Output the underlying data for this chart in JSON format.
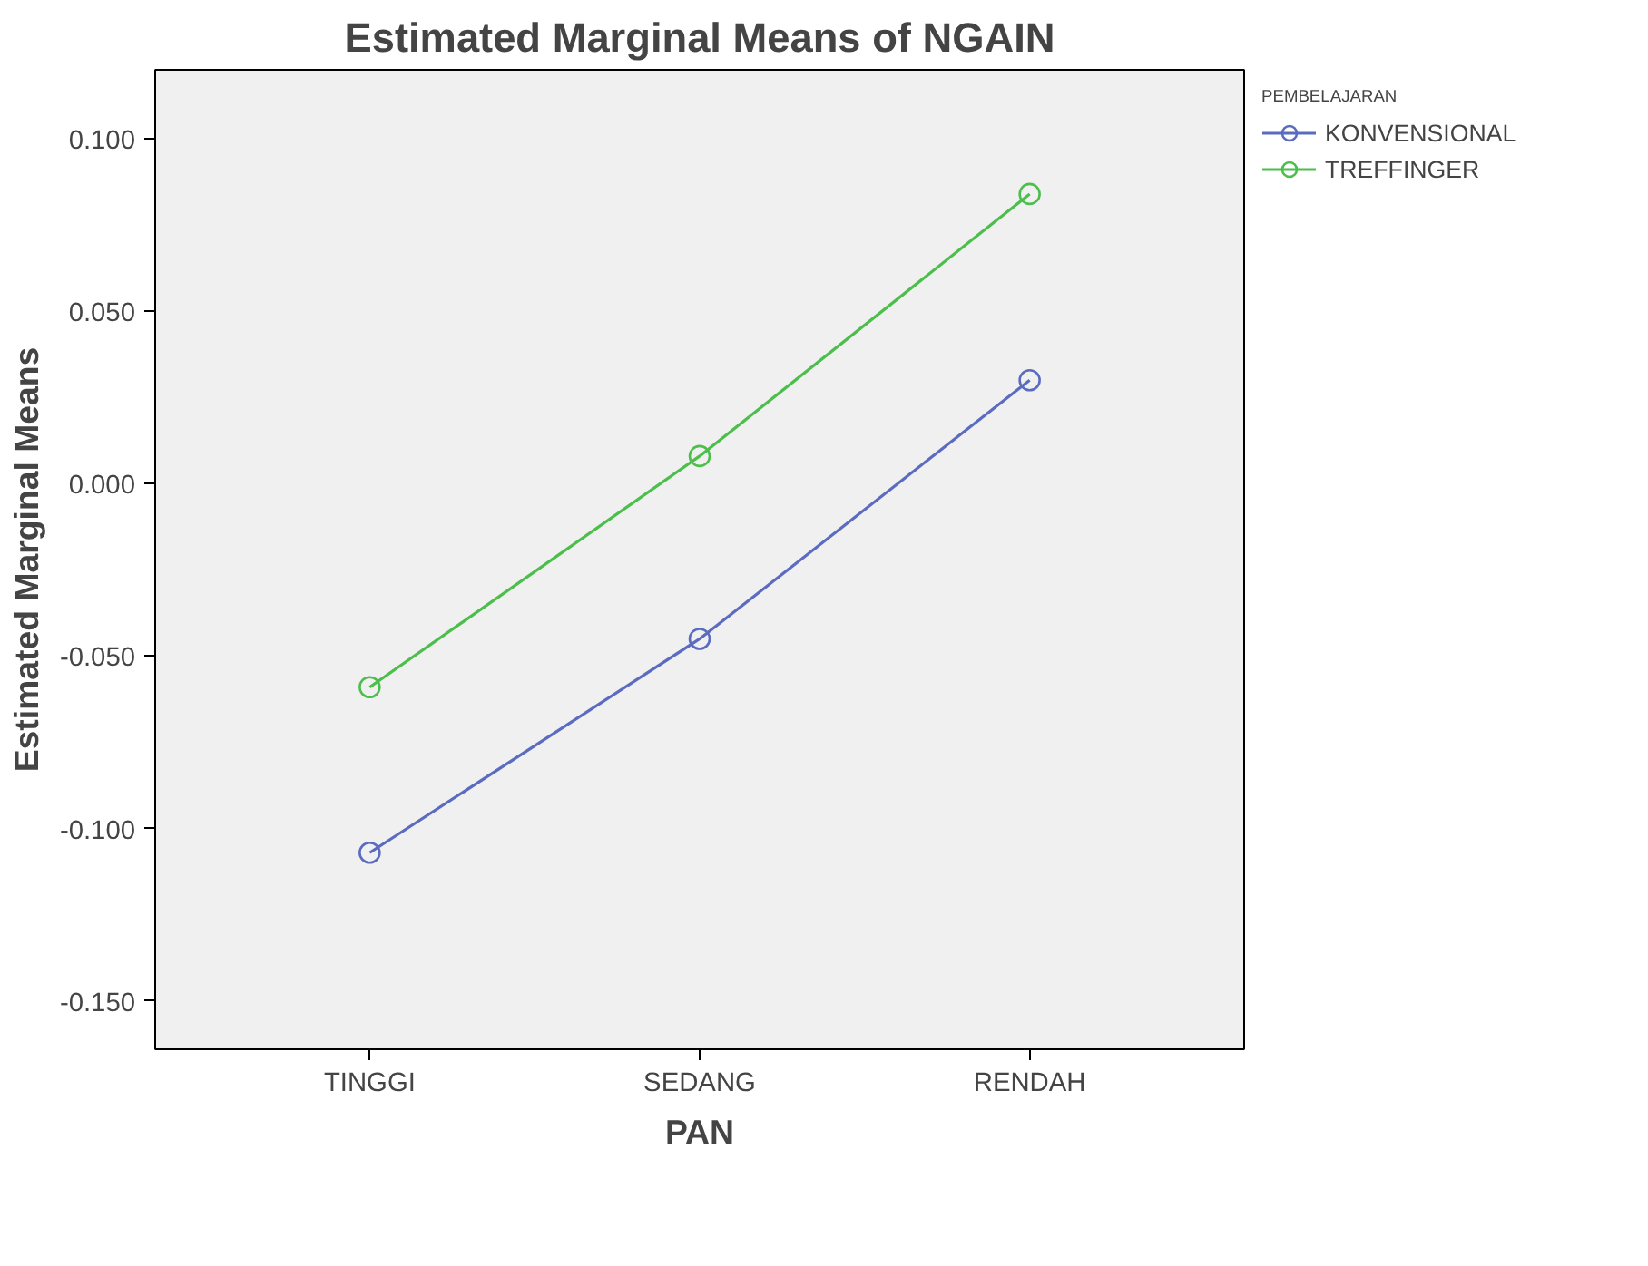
{
  "chart_data": {
    "type": "line",
    "title": "Estimated Marginal Means of NGAIN",
    "xlabel": "PAN",
    "ylabel": "Estimated Marginal Means",
    "legend_title": "PEMBELAJARAN",
    "categories": [
      "TINGGI",
      "SEDANG",
      "RENDAH"
    ],
    "series": [
      {
        "name": "KONVENSIONAL",
        "color": "#5b6cc0",
        "values": [
          -0.107,
          -0.045,
          0.03
        ]
      },
      {
        "name": "TREFFINGER",
        "color": "#4cbe4c",
        "values": [
          -0.059,
          0.008,
          0.084
        ]
      }
    ],
    "ylim": [
      -0.164,
      0.12
    ],
    "yticks": [
      {
        "value": -0.15,
        "label": "-0.150"
      },
      {
        "value": -0.1,
        "label": "-0.100"
      },
      {
        "value": -0.05,
        "label": "-0.050"
      },
      {
        "value": 0,
        "label": "0.000"
      },
      {
        "value": 0.05,
        "label": "0.050"
      },
      {
        "value": 0.1,
        "label": "0.100"
      }
    ],
    "grid": false,
    "legend": "top right",
    "marker": "circle",
    "line_style": "solid"
  }
}
